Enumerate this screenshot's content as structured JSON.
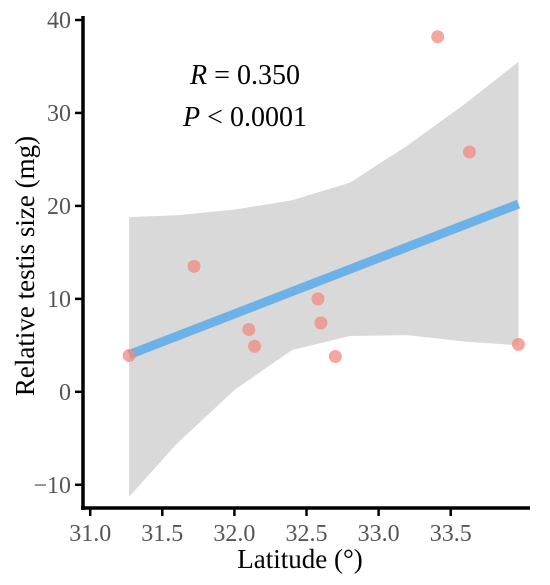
{
  "chart_data": {
    "type": "scatter",
    "xlabel": "Latitude (°)",
    "ylabel": "Relative testis size (mg)",
    "xlim": [
      30.95,
      34.05
    ],
    "ylim": [
      -12.5,
      40
    ],
    "xticks": [
      31.0,
      31.5,
      32.0,
      32.5,
      33.0,
      33.5
    ],
    "xtick_labels": [
      "31.0",
      "31.5",
      "32.0",
      "32.5",
      "33.0",
      "33.5"
    ],
    "yticks": [
      -10,
      0,
      10,
      20,
      30,
      40
    ],
    "ytick_labels": [
      "−10",
      "0",
      "10",
      "20",
      "30",
      "40"
    ],
    "grid": false,
    "series": [
      {
        "points": [
          {
            "x": 31.27,
            "y": 3.9
          },
          {
            "x": 31.72,
            "y": 13.5
          },
          {
            "x": 32.1,
            "y": 6.7
          },
          {
            "x": 32.14,
            "y": 4.9
          },
          {
            "x": 32.58,
            "y": 10.0
          },
          {
            "x": 32.6,
            "y": 7.4
          },
          {
            "x": 32.7,
            "y": 3.8
          },
          {
            "x": 33.41,
            "y": 38.2
          },
          {
            "x": 33.63,
            "y": 25.8
          },
          {
            "x": 33.97,
            "y": 5.1
          }
        ],
        "color": "#f08a80"
      }
    ],
    "fit_line": {
      "type": "linear",
      "x": [
        31.27,
        33.97
      ],
      "y": [
        4.0,
        20.2
      ],
      "color": "#6cb2e8"
    },
    "confidence_band": {
      "x": [
        31.27,
        31.6,
        32.0,
        32.4,
        32.8,
        33.2,
        33.6,
        33.97
      ],
      "upper": [
        18.8,
        19.0,
        19.6,
        20.6,
        22.5,
        26.5,
        31.0,
        35.5
      ],
      "lower": [
        -11.3,
        -5.6,
        0.2,
        4.5,
        6.0,
        6.1,
        5.4,
        5.0
      ],
      "color": "#d9d9d9"
    },
    "annotations": [
      {
        "italic": "R",
        "text": " = 0.350"
      },
      {
        "italic": "P",
        "text": " < 0.0001"
      }
    ]
  }
}
